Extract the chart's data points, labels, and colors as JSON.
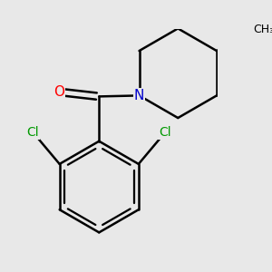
{
  "bg_color": "#e8e8e8",
  "bond_color": "#000000",
  "bond_width": 1.8,
  "atom_colors": {
    "O": "#ff0000",
    "N": "#0000cc",
    "Cl": "#009900",
    "C": "#000000"
  },
  "font_size": 11,
  "font_size_cl": 10
}
